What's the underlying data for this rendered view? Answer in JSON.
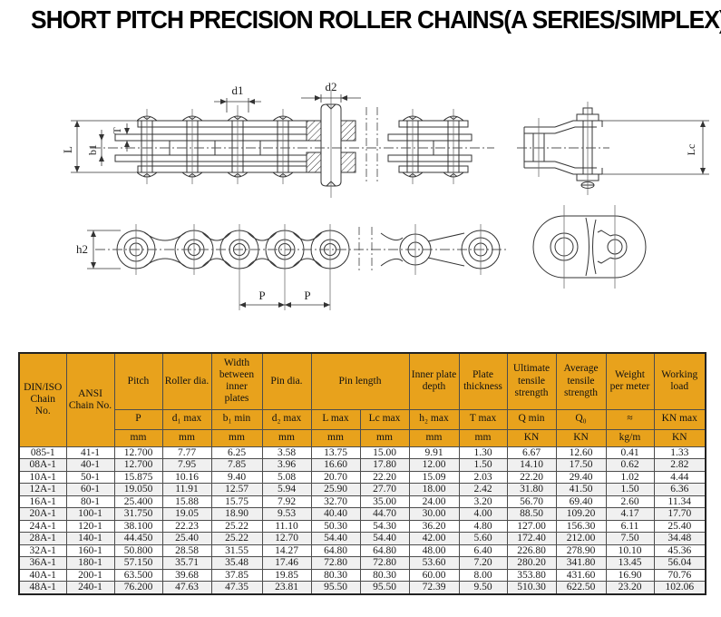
{
  "title": "SHORT PITCH PRECISION ROLLER CHAINS(A SERIES/SIMPLEX)",
  "colors": {
    "header_bg": "#E8A21C",
    "line": "#333333",
    "centerline": "#555555",
    "row_alt": "#F0F0F0",
    "border": "#4D4D4D"
  },
  "diagram": {
    "labels": {
      "d1": "d1",
      "d2": "d2",
      "L": "L",
      "b1": "b1",
      "T": "T",
      "Lc": "Lc",
      "h2": "h2",
      "p1": "P",
      "p2": "P"
    }
  },
  "table": {
    "header_row1": [
      {
        "label": "DIN/ISO Chain No."
      },
      {
        "label": "ANSI Chain No."
      },
      {
        "label": "Pitch"
      },
      {
        "label": "Roller dia."
      },
      {
        "label": "Width between inner plates"
      },
      {
        "label": "Pin dia."
      },
      {
        "label": "Pin length"
      },
      {
        "label": "Inner plate depth"
      },
      {
        "label": "Plate thickness"
      },
      {
        "label": "Ultimate tensile strength"
      },
      {
        "label": "Average tensile strength"
      },
      {
        "label": "Weight per meter"
      },
      {
        "label": "Working load"
      }
    ],
    "header_row2": [
      "P",
      "d₁ max",
      "b₁ min",
      "d₂ max",
      "L max",
      "Lc max",
      "h₂ max",
      "T max",
      "Q min",
      "Q₀",
      "≈",
      "KN max"
    ],
    "header_row3": [
      "mm",
      "mm",
      "mm",
      "mm",
      "mm",
      "mm",
      "mm",
      "mm",
      "KN",
      "KN",
      "kg/m",
      "KN"
    ],
    "rows": [
      [
        "085-1",
        "41-1",
        "12.700",
        "7.77",
        "6.25",
        "3.58",
        "13.75",
        "15.00",
        "9.91",
        "1.30",
        "6.67",
        "12.60",
        "0.41",
        "1.33"
      ],
      [
        "08A-1",
        "40-1",
        "12.700",
        "7.95",
        "7.85",
        "3.96",
        "16.60",
        "17.80",
        "12.00",
        "1.50",
        "14.10",
        "17.50",
        "0.62",
        "2.82"
      ],
      [
        "10A-1",
        "50-1",
        "15.875",
        "10.16",
        "9.40",
        "5.08",
        "20.70",
        "22.20",
        "15.09",
        "2.03",
        "22.20",
        "29.40",
        "1.02",
        "4.44"
      ],
      [
        "12A-1",
        "60-1",
        "19.050",
        "11.91",
        "12.57",
        "5.94",
        "25.90",
        "27.70",
        "18.00",
        "2.42",
        "31.80",
        "41.50",
        "1.50",
        "6.36"
      ],
      [
        "16A-1",
        "80-1",
        "25.400",
        "15.88",
        "15.75",
        "7.92",
        "32.70",
        "35.00",
        "24.00",
        "3.20",
        "56.70",
        "69.40",
        "2.60",
        "11.34"
      ],
      [
        "20A-1",
        "100-1",
        "31.750",
        "19.05",
        "18.90",
        "9.53",
        "40.40",
        "44.70",
        "30.00",
        "4.00",
        "88.50",
        "109.20",
        "4.17",
        "17.70"
      ],
      [
        "24A-1",
        "120-1",
        "38.100",
        "22.23",
        "25.22",
        "11.10",
        "50.30",
        "54.30",
        "36.20",
        "4.80",
        "127.00",
        "156.30",
        "6.11",
        "25.40"
      ],
      [
        "28A-1",
        "140-1",
        "44.450",
        "25.40",
        "25.22",
        "12.70",
        "54.40",
        "54.40",
        "42.00",
        "5.60",
        "172.40",
        "212.00",
        "7.50",
        "34.48"
      ],
      [
        "32A-1",
        "160-1",
        "50.800",
        "28.58",
        "31.55",
        "14.27",
        "64.80",
        "64.80",
        "48.00",
        "6.40",
        "226.80",
        "278.90",
        "10.10",
        "45.36"
      ],
      [
        "36A-1",
        "180-1",
        "57.150",
        "35.71",
        "35.48",
        "17.46",
        "72.80",
        "72.80",
        "53.60",
        "7.20",
        "280.20",
        "341.80",
        "13.45",
        "56.04"
      ],
      [
        "40A-1",
        "200-1",
        "63.500",
        "39.68",
        "37.85",
        "19.85",
        "80.30",
        "80.30",
        "60.00",
        "8.00",
        "353.80",
        "431.60",
        "16.90",
        "70.76"
      ],
      [
        "48A-1",
        "240-1",
        "76.200",
        "47.63",
        "47.35",
        "23.81",
        "95.50",
        "95.50",
        "72.39",
        "9.50",
        "510.30",
        "622.50",
        "23.20",
        "102.06"
      ]
    ]
  }
}
